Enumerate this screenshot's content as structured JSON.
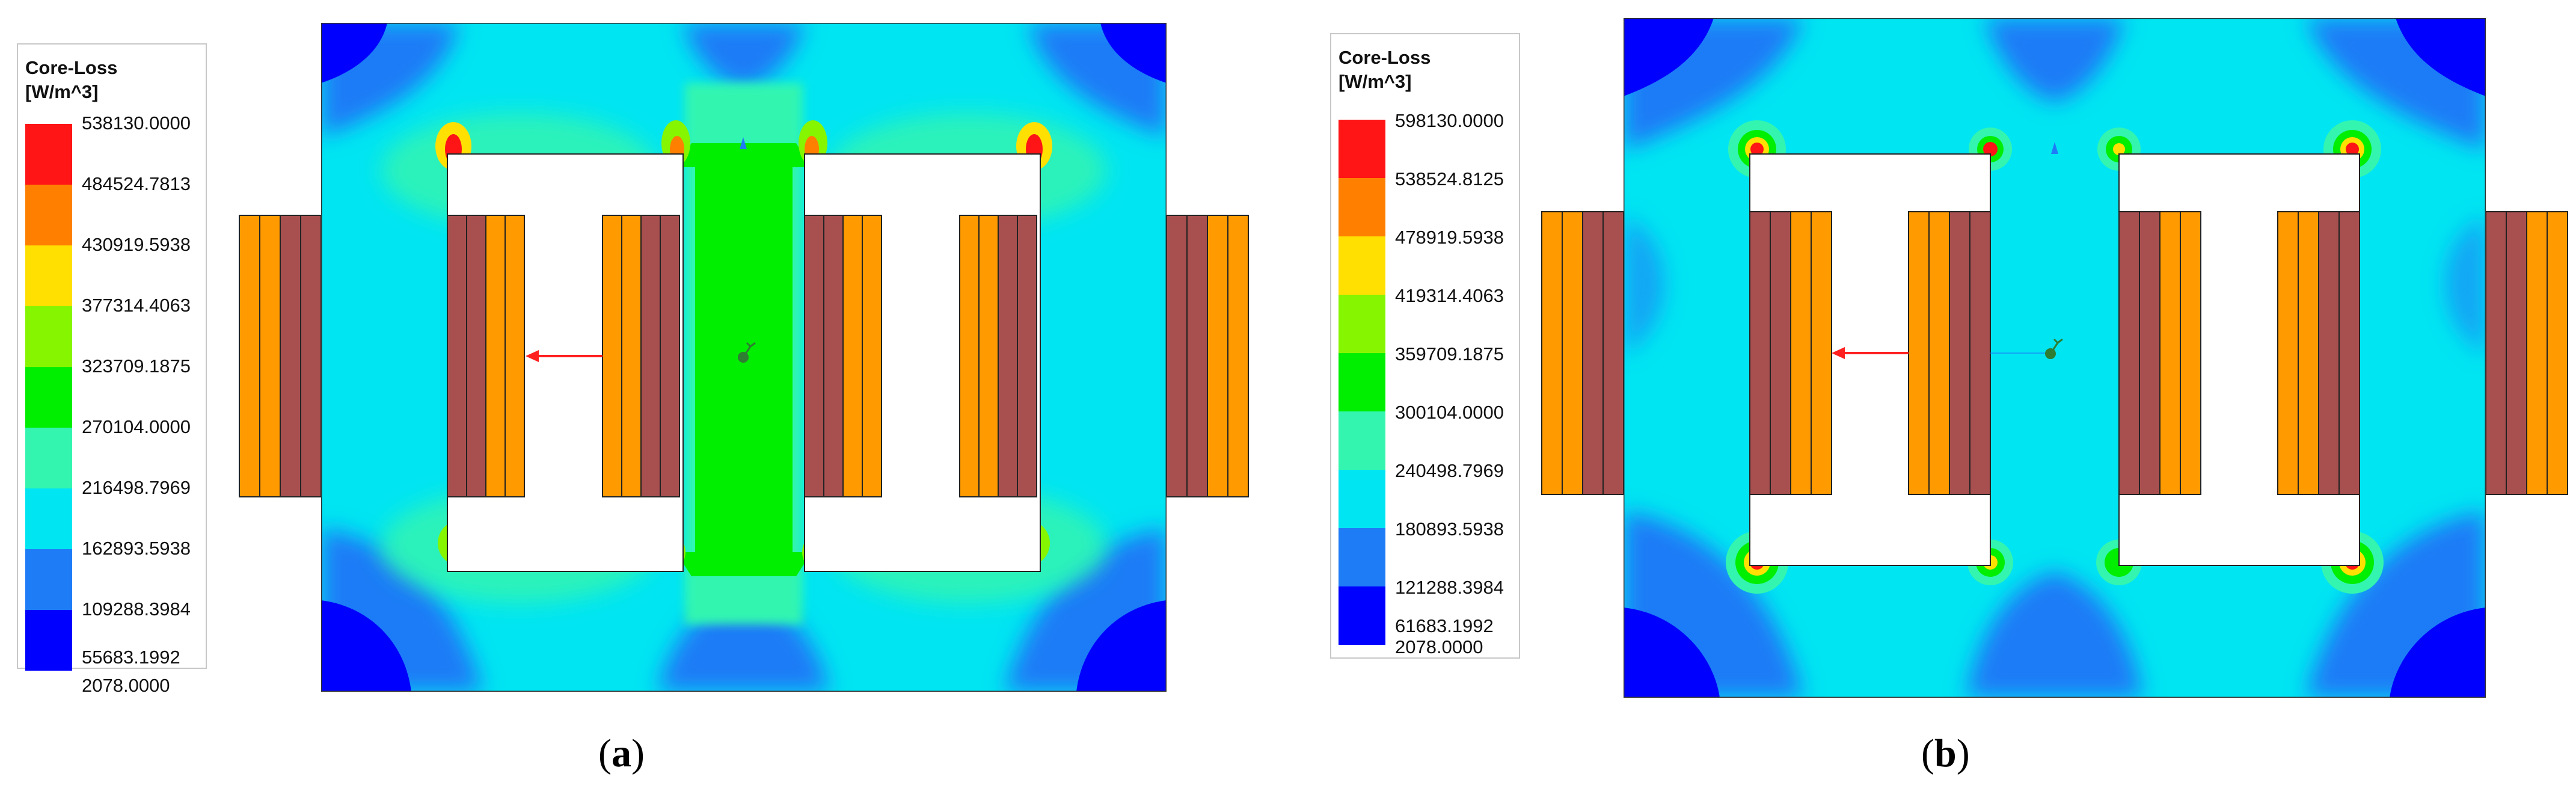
{
  "colors": {
    "scale": [
      "#0000ff",
      "#1e7cf7",
      "#00e5f2",
      "#33f5b0",
      "#00ee00",
      "#86f500",
      "#ffe000",
      "#ff8000",
      "#ff1515"
    ],
    "coil_orange": "#ff9a00",
    "coil_brown": "#a85050",
    "window": "#ffffff",
    "arrow": "#ff2020"
  },
  "panels": [
    {
      "caption_letter": "a",
      "legend": {
        "title_line1": "Core-Loss",
        "title_line2": "[W/m^3]",
        "values": [
          "538130.0000",
          "484524.7813",
          "430919.5938",
          "377314.4063",
          "323709.1875",
          "270104.0000",
          "216498.7969",
          "162893.5938",
          "109288.3984",
          "55683.1992",
          "2078.0000"
        ]
      }
    },
    {
      "caption_letter": "b",
      "legend": {
        "title_line1": "Core-Loss",
        "title_line2": "[W/m^3]",
        "values": [
          "598130.0000",
          "538524.8125",
          "478919.5938",
          "419314.4063",
          "359709.1875",
          "300104.0000",
          "240498.7969",
          "180893.5938",
          "121288.3984",
          "61683.1992",
          "2078.0000"
        ]
      }
    }
  ]
}
